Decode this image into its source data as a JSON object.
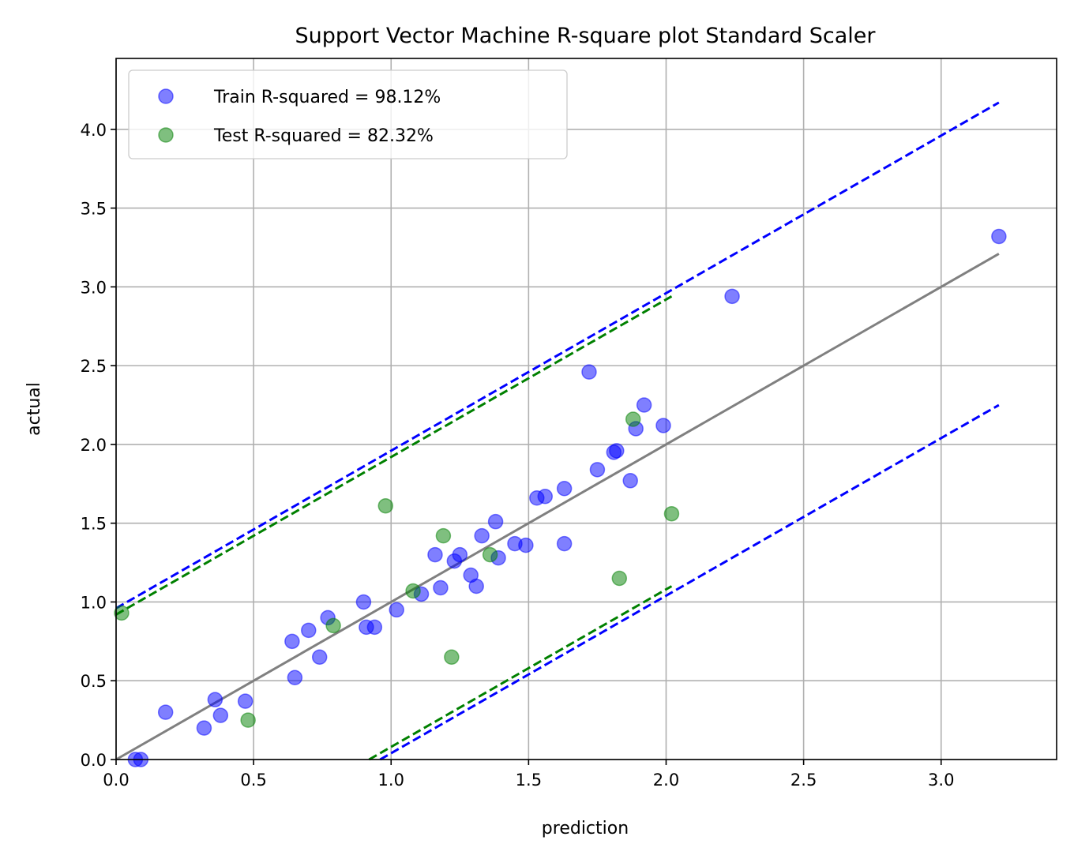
{
  "chart_data": {
    "type": "scatter",
    "title": "Support Vector Machine R-square plot Standard Scaler",
    "xlabel": "prediction",
    "ylabel": "actual",
    "xlim": [
      0,
      3.42
    ],
    "ylim": [
      0,
      4.45
    ],
    "x_ticks": [
      0.0,
      0.5,
      1.0,
      1.5,
      2.0,
      2.5,
      3.0
    ],
    "x_tick_labels": [
      "0.0",
      "0.5",
      "1.0",
      "1.5",
      "2.0",
      "2.5",
      "3.0"
    ],
    "y_ticks": [
      0.0,
      0.5,
      1.0,
      1.5,
      2.0,
      2.5,
      3.0,
      3.5,
      4.0
    ],
    "y_tick_labels": [
      "0.0",
      "0.5",
      "1.0",
      "1.5",
      "2.0",
      "2.5",
      "3.0",
      "3.5",
      "4.0"
    ],
    "grid": true,
    "legend_position": "top-left",
    "colors": {
      "train": "#0000ff",
      "test": "#008000",
      "identity": "#808080"
    },
    "series": [
      {
        "name": "Train R-squared = 98.12%",
        "kind": "scatter",
        "color": "#0000ff",
        "points": [
          [
            0.07,
            0.0
          ],
          [
            0.09,
            0.0
          ],
          [
            0.18,
            0.3
          ],
          [
            0.32,
            0.2
          ],
          [
            0.36,
            0.38
          ],
          [
            0.38,
            0.28
          ],
          [
            0.47,
            0.37
          ],
          [
            0.64,
            0.75
          ],
          [
            0.65,
            0.52
          ],
          [
            0.7,
            0.82
          ],
          [
            0.74,
            0.65
          ],
          [
            0.77,
            0.9
          ],
          [
            0.9,
            1.0
          ],
          [
            0.91,
            0.84
          ],
          [
            0.94,
            0.84
          ],
          [
            1.02,
            0.95
          ],
          [
            1.11,
            1.05
          ],
          [
            1.16,
            1.3
          ],
          [
            1.18,
            1.09
          ],
          [
            1.23,
            1.26
          ],
          [
            1.25,
            1.3
          ],
          [
            1.29,
            1.17
          ],
          [
            1.31,
            1.1
          ],
          [
            1.33,
            1.42
          ],
          [
            1.38,
            1.51
          ],
          [
            1.39,
            1.28
          ],
          [
            1.45,
            1.37
          ],
          [
            1.49,
            1.36
          ],
          [
            1.53,
            1.66
          ],
          [
            1.56,
            1.67
          ],
          [
            1.63,
            1.72
          ],
          [
            1.63,
            1.37
          ],
          [
            1.72,
            2.46
          ],
          [
            1.75,
            1.84
          ],
          [
            1.81,
            1.95
          ],
          [
            1.82,
            1.96
          ],
          [
            1.87,
            1.77
          ],
          [
            1.89,
            2.1
          ],
          [
            1.92,
            2.25
          ],
          [
            1.99,
            2.12
          ],
          [
            2.24,
            2.94
          ],
          [
            3.21,
            3.32
          ]
        ]
      },
      {
        "name": "Test R-squared = 82.32%",
        "kind": "scatter",
        "color": "#008000",
        "points": [
          [
            0.02,
            0.93
          ],
          [
            0.48,
            0.25
          ],
          [
            0.79,
            0.85
          ],
          [
            0.98,
            1.61
          ],
          [
            1.08,
            1.07
          ],
          [
            1.19,
            1.42
          ],
          [
            1.22,
            0.65
          ],
          [
            1.36,
            1.3
          ],
          [
            1.83,
            1.15
          ],
          [
            1.88,
            2.16
          ],
          [
            2.02,
            1.56
          ]
        ]
      },
      {
        "name": "identity",
        "kind": "line",
        "style": "solid",
        "color": "#808080",
        "points": [
          [
            0.0,
            0.0
          ],
          [
            3.21,
            3.21
          ]
        ]
      },
      {
        "name": "train upper bound",
        "kind": "line",
        "style": "dashed",
        "color": "#0000ff",
        "points": [
          [
            0.0,
            0.96
          ],
          [
            3.21,
            4.17
          ]
        ]
      },
      {
        "name": "train lower bound",
        "kind": "line",
        "style": "dashed",
        "color": "#0000ff",
        "points": [
          [
            0.96,
            0.0
          ],
          [
            3.21,
            2.25
          ]
        ]
      },
      {
        "name": "test upper bound",
        "kind": "line",
        "style": "dashed",
        "color": "#008000",
        "points": [
          [
            0.0,
            0.92
          ],
          [
            2.02,
            2.94
          ]
        ]
      },
      {
        "name": "test lower bound",
        "kind": "line",
        "style": "dashed",
        "color": "#008000",
        "points": [
          [
            0.92,
            0.0
          ],
          [
            2.02,
            1.1
          ]
        ]
      }
    ]
  }
}
